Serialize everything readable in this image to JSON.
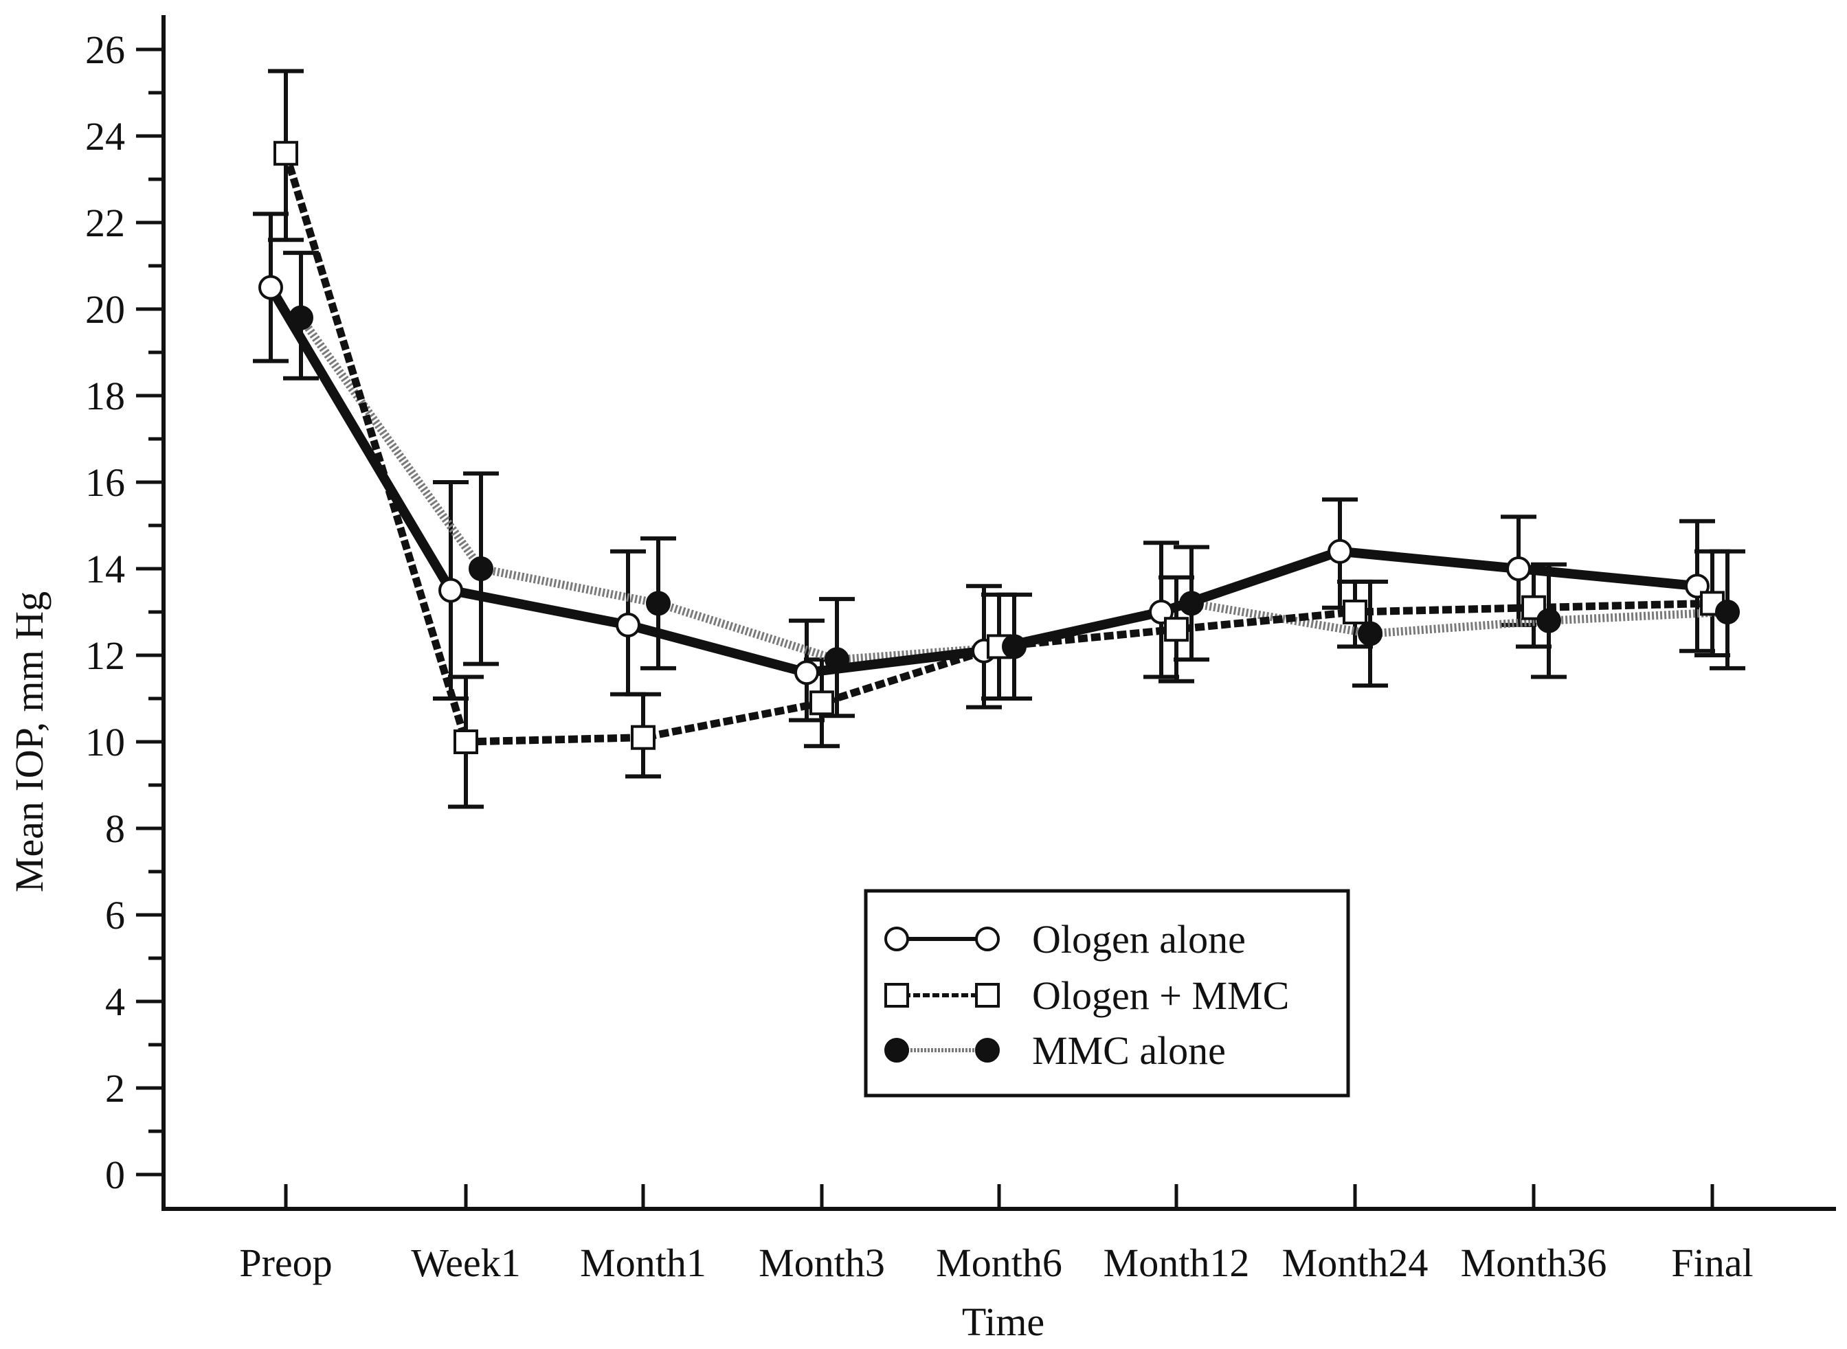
{
  "chart_data": {
    "type": "line",
    "title": "",
    "xlabel": "Time",
    "ylabel": "Mean IOP, mm Hg",
    "ylim": [
      -0.8,
      26.8
    ],
    "yticks": [
      0,
      2,
      4,
      6,
      8,
      10,
      12,
      14,
      16,
      18,
      20,
      22,
      24,
      26
    ],
    "categories": [
      "Preop",
      "Week1",
      "Month1",
      "Month3",
      "Month6",
      "Month12",
      "Month24",
      "Month36",
      "Final"
    ],
    "legend_position": "bottom-center",
    "series": [
      {
        "name": "Ologen alone",
        "line": "solid",
        "marker": "open-circle",
        "values": [
          20.5,
          13.5,
          12.7,
          11.6,
          12.1,
          13.0,
          14.4,
          14.0,
          13.6
        ],
        "error_upper": [
          22.2,
          16.0,
          14.4,
          12.8,
          13.6,
          14.6,
          15.6,
          15.2,
          15.1
        ],
        "error_lower": [
          18.8,
          11.0,
          11.1,
          10.5,
          10.8,
          11.5,
          13.1,
          12.7,
          12.1
        ]
      },
      {
        "name": "Ologen + MMC",
        "line": "dashed",
        "marker": "open-square",
        "values": [
          23.6,
          10.0,
          10.1,
          10.9,
          12.2,
          12.6,
          13.0,
          13.1,
          13.2
        ],
        "error_upper": [
          25.5,
          11.5,
          11.1,
          11.9,
          13.4,
          13.8,
          13.7,
          14.0,
          14.4
        ],
        "error_lower": [
          21.6,
          8.5,
          9.2,
          9.9,
          11.0,
          11.4,
          12.2,
          12.2,
          12.0
        ]
      },
      {
        "name": "MMC alone",
        "line": "dotted",
        "marker": "filled-circle",
        "values": [
          19.8,
          14.0,
          13.2,
          11.9,
          12.2,
          13.2,
          12.5,
          12.8,
          13.0
        ],
        "error_upper": [
          21.3,
          16.2,
          14.7,
          13.3,
          13.4,
          14.5,
          13.7,
          14.1,
          14.4
        ],
        "error_lower": [
          18.4,
          11.8,
          11.7,
          10.6,
          11.0,
          11.9,
          11.3,
          11.5,
          11.7
        ]
      }
    ]
  },
  "colors": {
    "ink": "#111111",
    "dotted_line": "#7a7a7a",
    "background": "#ffffff"
  }
}
